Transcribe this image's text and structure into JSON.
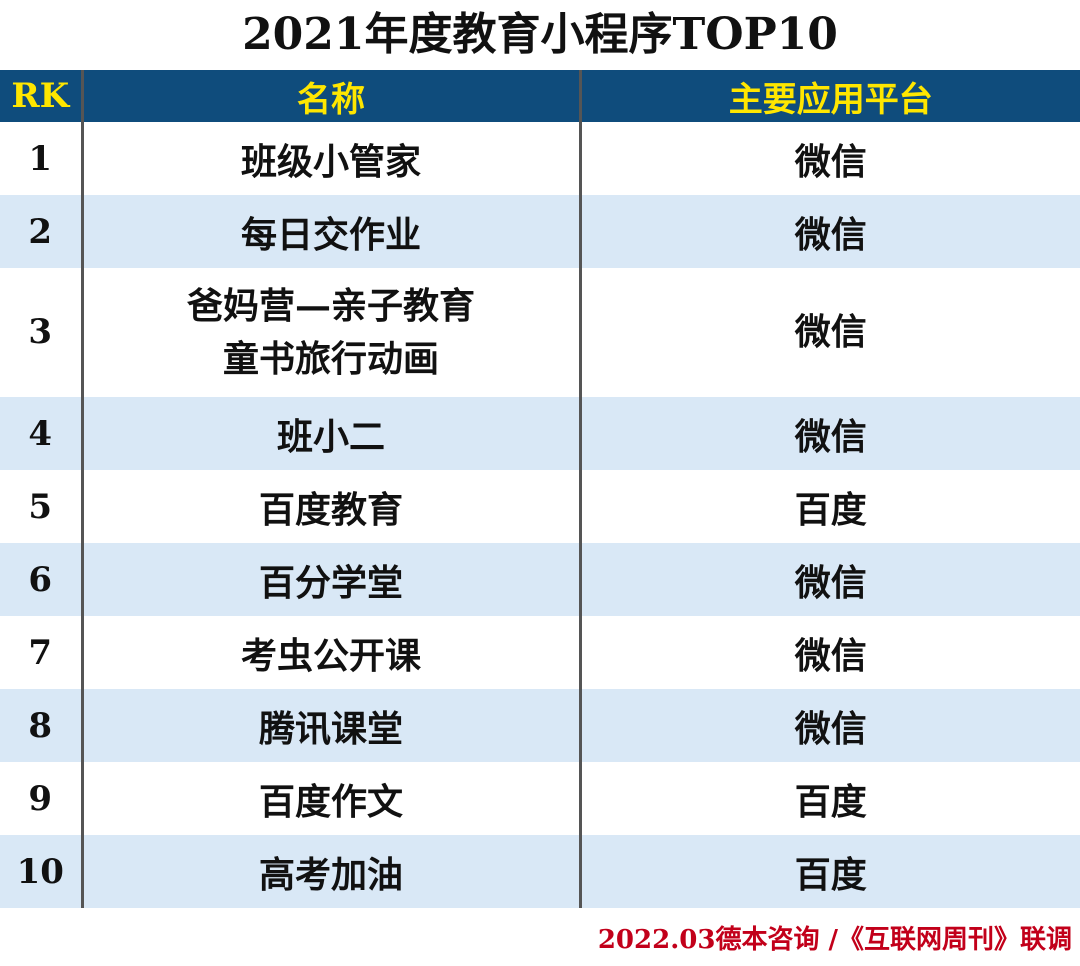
{
  "title": "2021年度教育小程序TOP10",
  "colors": {
    "header_bg": "#0f4c7c",
    "header_text": "#ffe600",
    "stripe": "#d9e8f6",
    "source_text": "#c2001a"
  },
  "table": {
    "headers": {
      "rank": "RK",
      "name": "名称",
      "platform": "主要应用平台"
    },
    "rows": [
      {
        "rank": "1",
        "name": "班级小管家",
        "platform": "微信"
      },
      {
        "rank": "2",
        "name": "每日交作业",
        "platform": "微信"
      },
      {
        "rank": "3",
        "name_lines": [
          "爸妈营—亲子教育",
          "童书旅行动画"
        ],
        "platform": "微信"
      },
      {
        "rank": "4",
        "name": "班小二",
        "platform": "微信"
      },
      {
        "rank": "5",
        "name": "百度教育",
        "platform": "百度"
      },
      {
        "rank": "6",
        "name": "百分学堂",
        "platform": "微信"
      },
      {
        "rank": "7",
        "name": "考虫公开课",
        "platform": "微信"
      },
      {
        "rank": "8",
        "name": "腾讯课堂",
        "platform": "微信"
      },
      {
        "rank": "9",
        "name": "百度作文",
        "platform": "百度"
      },
      {
        "rank": "10",
        "name": "高考加油",
        "platform": "百度"
      }
    ]
  },
  "source": "2022.03德本咨询 /《互联网周刊》联调"
}
